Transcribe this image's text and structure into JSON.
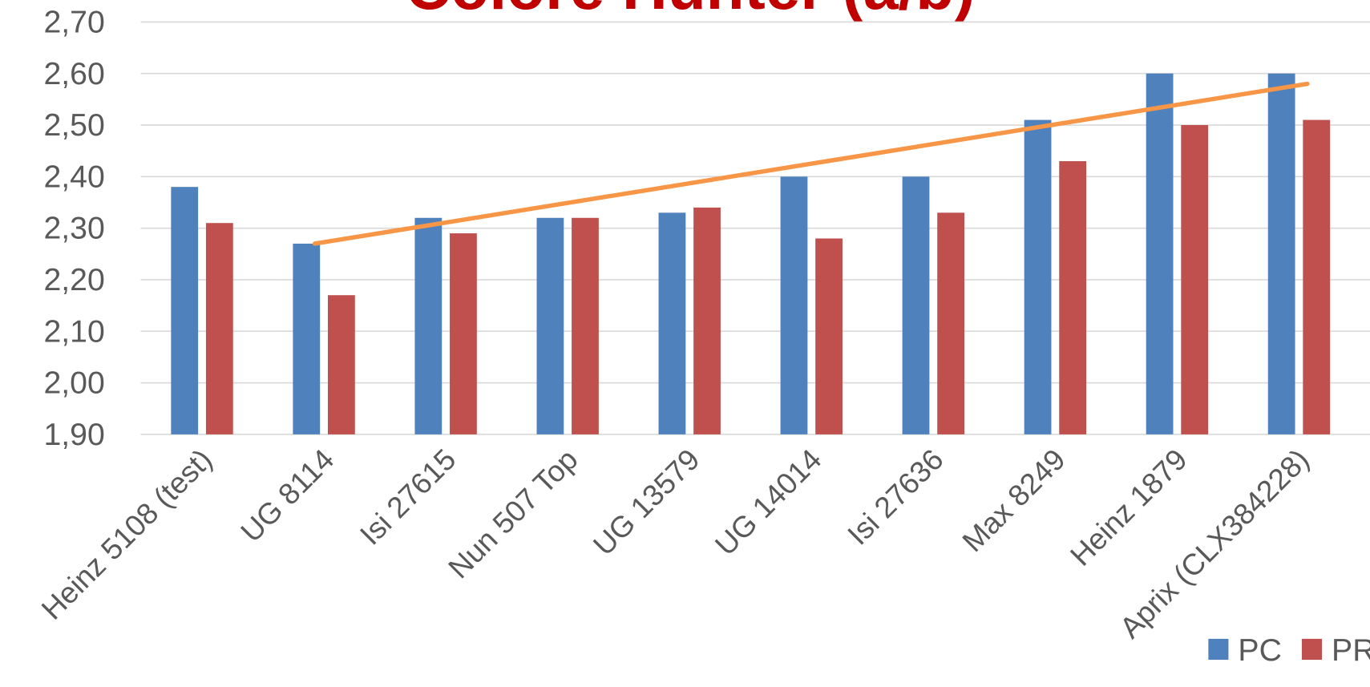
{
  "chart_data": {
    "type": "bar",
    "title": "Colore Hunter (a/b)",
    "categories": [
      "Heinz 5108 (test)",
      "UG 8114",
      "Isi 27615",
      "Nun 507 Top",
      "UG 13579",
      "UG 14014",
      "Isi 27636",
      "Max 8249",
      "Heinz 1879",
      "Aprix (CLX384228)"
    ],
    "series": [
      {
        "name": "PC",
        "color": "#4f81bd",
        "values": [
          2.38,
          2.27,
          2.32,
          2.32,
          2.33,
          2.4,
          2.4,
          2.51,
          2.6,
          2.6
        ]
      },
      {
        "name": "PR",
        "color": "#c0504d",
        "values": [
          2.31,
          2.17,
          2.29,
          2.32,
          2.34,
          2.28,
          2.33,
          2.43,
          2.5,
          2.51
        ]
      }
    ],
    "trendline": {
      "color": "#f79646",
      "x": [
        1,
        9
      ],
      "values": [
        2.27,
        2.58
      ]
    },
    "ylim": [
      1.9,
      2.7
    ],
    "yticks": [
      {
        "value": 1.9,
        "label": "1,90"
      },
      {
        "value": 2.0,
        "label": "2,00"
      },
      {
        "value": 2.1,
        "label": "2,10"
      },
      {
        "value": 2.2,
        "label": "2,20"
      },
      {
        "value": 2.3,
        "label": "2,30"
      },
      {
        "value": 2.4,
        "label": "2,40"
      },
      {
        "value": 2.5,
        "label": "2,50"
      },
      {
        "value": 2.6,
        "label": "2,60"
      },
      {
        "value": 2.7,
        "label": "2,70"
      }
    ],
    "grid": true,
    "legend": "bottom"
  }
}
